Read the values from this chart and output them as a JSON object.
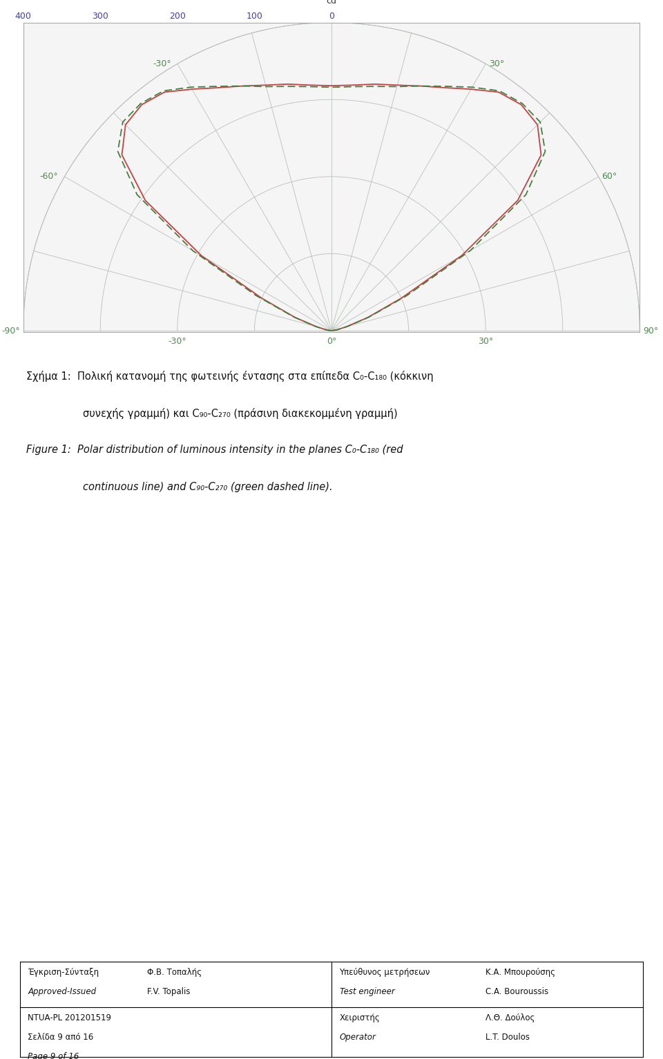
{
  "max_cd": 400,
  "cd_circles": [
    100,
    200,
    300,
    400
  ],
  "angle_lines_deg": [
    -90,
    -75,
    -60,
    -45,
    -30,
    -15,
    0,
    15,
    30,
    45,
    60,
    75,
    90
  ],
  "angle_label_color": "#4d8a4d",
  "axis_label_color": "#4040a0",
  "grid_color": "#b8c0b8",
  "background_color": "#ffffff",
  "chart_bg_color": "#f5f5f5",
  "red_curve_color": "#c84040",
  "green_curve_color": "#408040",
  "red_linewidth": 1.3,
  "green_linewidth": 1.3,
  "caption_greek_line1": "Σχήμα 1:  Πολική κατανομή της φωτεινής έντασης στα επίπεδα C₀-C₁₈₀ (κόκκινη",
  "caption_greek_line2": "συνεχής γραμμή) και C₉₀-C₂₇₀ (πράσινη διακεκομμένη γραμμή)",
  "caption_english_line1": "Figure 1:  Polar distribution of luminous intensity in the planes C₀-C₁₈₀ (red",
  "caption_english_line2": "continuous line) and C₉₀-C₂₇₀ (green dashed line).",
  "footer_col1_row1a": "Έγκριση-Σύνταξη",
  "footer_col1_row1b": "Approved-Issued",
  "footer_col2_row1a": "Φ.Β. Τοπαλής",
  "footer_col2_row1b": "F.V. Topalis",
  "footer_col3_row1a": "Υπεύθυνος μετρήσεων",
  "footer_col3_row1b": "Test engineer",
  "footer_col4_row1a": "Κ.Α. Μπουρούσης",
  "footer_col4_row1b": "C.A. Bouroussis",
  "footer_col1_row2a": "NTUA-PL 201201519",
  "footer_col1_row2b": "Σελίδα 9 από 16",
  "footer_col1_row2c": "Page 9 of 16",
  "footer_col3_row2a": "Χειριστής",
  "footer_col3_row2b": "Operator",
  "footer_col4_row2a": "Λ.Θ. Δούλος",
  "footer_col4_row2b": "L.T. Doulos",
  "c0_180_angles": [
    -90,
    -85,
    -80,
    -75,
    -70,
    -65,
    -60,
    -55,
    -50,
    -45,
    -40,
    -35,
    -30,
    -25,
    -20,
    -15,
    -10,
    -5,
    0,
    5,
    10,
    15,
    20,
    25,
    30,
    35,
    40,
    45,
    50,
    55,
    60,
    65,
    70,
    75,
    80,
    85,
    90
  ],
  "c0_180_values": [
    0,
    2,
    8,
    20,
    50,
    100,
    195,
    295,
    355,
    378,
    383,
    378,
    362,
    348,
    338,
    330,
    325,
    320,
    318,
    320,
    325,
    330,
    338,
    348,
    362,
    378,
    383,
    378,
    355,
    295,
    195,
    100,
    50,
    20,
    8,
    2,
    0
  ],
  "c90_270_angles": [
    -90,
    -85,
    -80,
    -75,
    -70,
    -65,
    -60,
    -55,
    -50,
    -45,
    -40,
    -35,
    -30,
    -25,
    -20,
    -15,
    -10,
    -5,
    0,
    5,
    10,
    15,
    20,
    25,
    30,
    35,
    40,
    45,
    50,
    55,
    60,
    65,
    70,
    75,
    80,
    85,
    90
  ],
  "c90_270_values": [
    0,
    2,
    8,
    22,
    52,
    108,
    208,
    308,
    362,
    383,
    385,
    380,
    365,
    350,
    338,
    328,
    322,
    318,
    316,
    318,
    322,
    328,
    338,
    350,
    365,
    380,
    385,
    383,
    362,
    308,
    208,
    108,
    52,
    22,
    8,
    2,
    0
  ]
}
